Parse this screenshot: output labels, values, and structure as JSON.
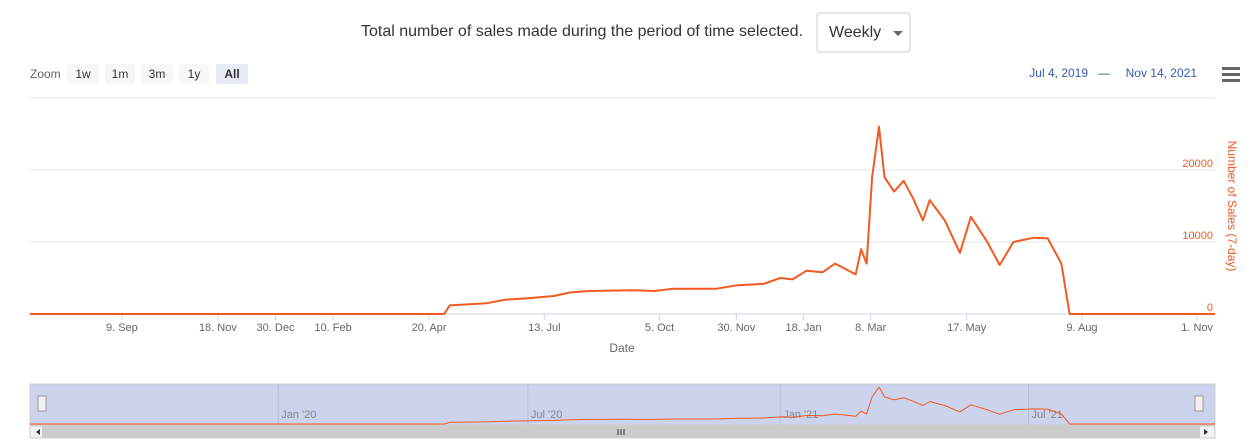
{
  "header": {
    "title": "Total number of sales made during the period of time selected.",
    "select": "Weekly"
  },
  "zoom": {
    "label": "Zoom",
    "buttons": [
      "1w",
      "1m",
      "3m",
      "1y",
      "All"
    ],
    "selected": 4
  },
  "range": {
    "from": "Jul 4, 2019",
    "separator": "—",
    "to": "Nov 14, 2021"
  },
  "chart_data": {
    "type": "line",
    "x_label": "Date",
    "y_label": "Number of Sales (7-day)",
    "xlim": [
      "2019-07-04",
      "2021-11-14"
    ],
    "xticks": [
      {
        "value": "2019-09-09",
        "label": "9. Sep"
      },
      {
        "value": "2019-11-18",
        "label": "18. Nov"
      },
      {
        "value": "2019-12-30",
        "label": "30. Dec"
      },
      {
        "value": "2020-02-10",
        "label": "10. Feb"
      },
      {
        "value": "2020-04-20",
        "label": "20. Apr"
      },
      {
        "value": "2020-07-13",
        "label": "13. Jul"
      },
      {
        "value": "2020-10-05",
        "label": "5. Oct"
      },
      {
        "value": "2020-11-30",
        "label": "30. Nov"
      },
      {
        "value": "2021-01-18",
        "label": "18. Jan"
      },
      {
        "value": "2021-03-08",
        "label": "8. Mar"
      },
      {
        "value": "2021-05-17",
        "label": "17. May"
      },
      {
        "value": "2021-08-09",
        "label": "9. Aug"
      },
      {
        "value": "2021-11-01",
        "label": "1. Nov"
      }
    ],
    "ylim": [
      0,
      30000
    ],
    "yticks": [
      0,
      10000,
      20000
    ],
    "grid": true,
    "series": [
      {
        "name": "Number of Sales (7-day)",
        "color": "#f15a22",
        "x": [
          "2019-07-04",
          "2020-05-01",
          "2020-05-05",
          "2020-06-01",
          "2020-06-15",
          "2020-07-01",
          "2020-07-20",
          "2020-08-01",
          "2020-08-15",
          "2020-09-15",
          "2020-10-01",
          "2020-10-15",
          "2020-11-15",
          "2020-12-01",
          "2020-12-20",
          "2021-01-01",
          "2021-01-10",
          "2021-01-20",
          "2021-02-01",
          "2021-02-10",
          "2021-02-20",
          "2021-02-25",
          "2021-03-01",
          "2021-03-05",
          "2021-03-09",
          "2021-03-14",
          "2021-03-18",
          "2021-03-25",
          "2021-04-01",
          "2021-04-08",
          "2021-04-15",
          "2021-04-20",
          "2021-05-01",
          "2021-05-12",
          "2021-05-20",
          "2021-06-01",
          "2021-06-10",
          "2021-06-20",
          "2021-07-05",
          "2021-07-15",
          "2021-07-25",
          "2021-07-31",
          "2021-11-14"
        ],
        "values": [
          0,
          0,
          1200,
          1500,
          2000,
          2200,
          2500,
          3000,
          3200,
          3300,
          3200,
          3500,
          3500,
          4000,
          4200,
          5000,
          4800,
          6000,
          5800,
          7000,
          6000,
          5500,
          9000,
          7000,
          19000,
          26000,
          19000,
          17000,
          18500,
          16000,
          13000,
          15800,
          13000,
          8500,
          13500,
          10000,
          6800,
          10000,
          10600,
          10500,
          7000,
          0,
          0
        ]
      }
    ]
  },
  "navigator": {
    "ticks": [
      {
        "value": "2020-01-01",
        "label": "Jan '20"
      },
      {
        "value": "2020-07-01",
        "label": "Jul '20"
      },
      {
        "value": "2021-01-01",
        "label": "Jan '21"
      },
      {
        "value": "2021-07-01",
        "label": "Jul '21"
      }
    ]
  }
}
